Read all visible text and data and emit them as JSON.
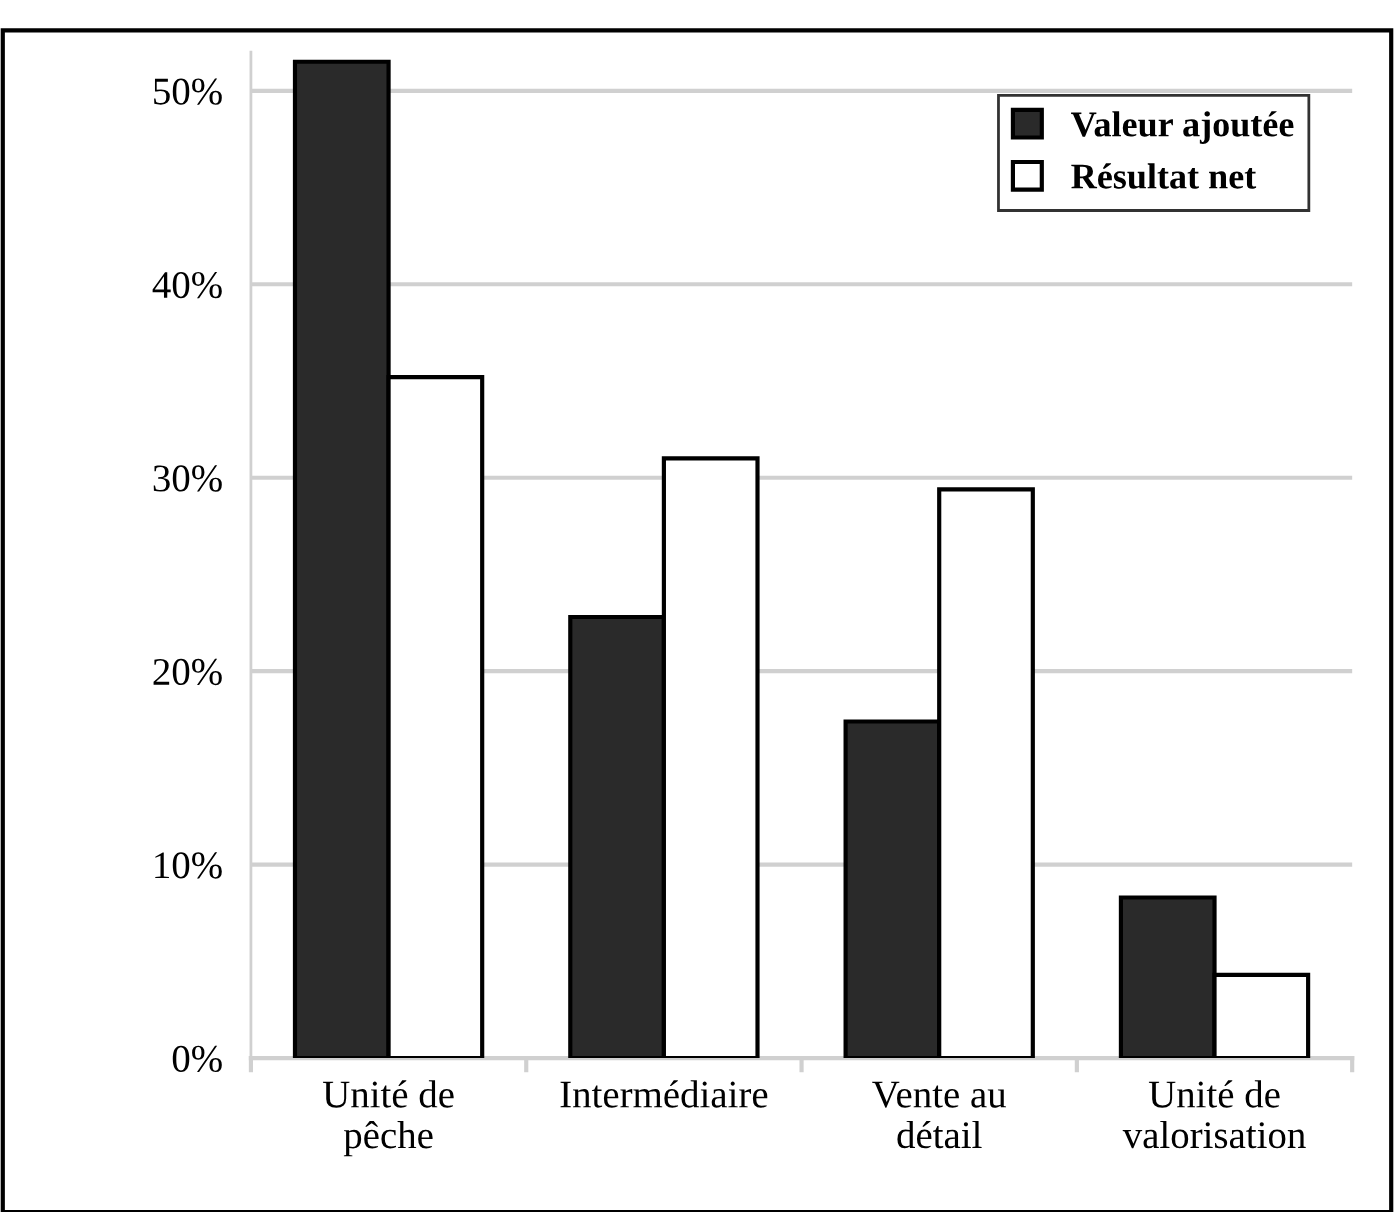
{
  "chart_data": {
    "type": "bar",
    "categories": [
      "Unité de\npêche",
      "Intermédiaire",
      "Vente au\ndétail",
      "Unité de\nvalorisation"
    ],
    "series": [
      {
        "name": "Valeur ajoutée",
        "color": "#2a2a2a",
        "values": [
          51.5,
          22.8,
          17.4,
          8.3
        ]
      },
      {
        "name": "Résultat net",
        "color": "#ffffff",
        "values": [
          35.2,
          31.0,
          29.4,
          4.3
        ]
      }
    ],
    "ylim": [
      0,
      52
    ],
    "yticks": [
      {
        "value": 0,
        "label": "0%"
      },
      {
        "value": 10,
        "label": "10%"
      },
      {
        "value": 20,
        "label": "20%"
      },
      {
        "value": 30,
        "label": "30%"
      },
      {
        "value": 40,
        "label": "40%"
      },
      {
        "value": 50,
        "label": "50%"
      }
    ],
    "grid": "y",
    "legend": "top right"
  }
}
